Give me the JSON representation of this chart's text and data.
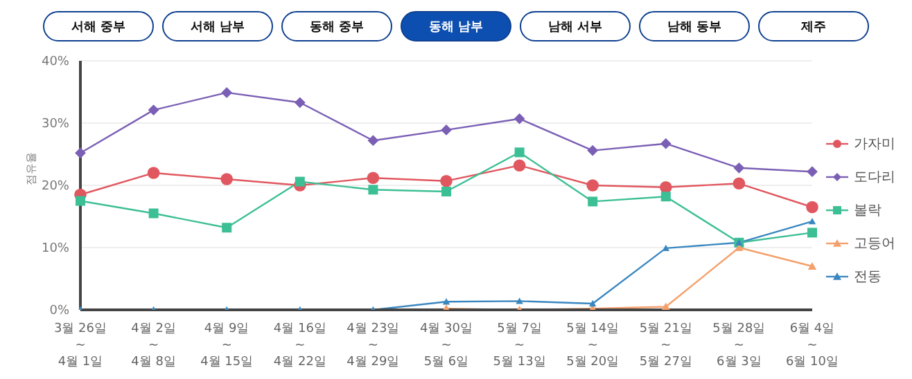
{
  "chart_data": {
    "type": "line",
    "title": "동해 남부",
    "annotations": [
      "서해 중부",
      "서해 남부",
      "동해 중부",
      "남해 서부",
      "남해 동부",
      "제주"
    ],
    "ylabel": "점유율",
    "categories": [
      "3월 26일\n~\n4월 1일",
      "4월 2일\n~\n4월 8일",
      "4월 9일\n~\n4월 15일",
      "4월 16일\n~\n4월 22일",
      "4월 23일\n~\n4월 29일",
      "4월 30일\n~\n5월 6일",
      "5월 7일\n~\n5월 13일",
      "5월 14일\n~\n5월 20일",
      "5월 21일\n~\n5월 27일",
      "5월 28일\n~\n6월 3일",
      "6월 4일\n~\n6월 10일"
    ],
    "series": [
      {
        "name": "가자미",
        "color": "#e0575f",
        "marker": "circle",
        "values": [
          18.5,
          22.0,
          21.0,
          20.0,
          21.2,
          20.7,
          23.2,
          20.0,
          19.7,
          20.3,
          16.5
        ]
      },
      {
        "name": "도다리",
        "color": "#7b5fb5",
        "marker": "diamond",
        "values": [
          25.2,
          32.1,
          34.9,
          33.3,
          27.2,
          28.9,
          30.7,
          25.6,
          26.7,
          22.8,
          22.2
        ]
      },
      {
        "name": "볼락",
        "color": "#3dbf95",
        "marker": "square",
        "values": [
          17.5,
          15.5,
          13.2,
          20.6,
          19.3,
          19.0,
          25.3,
          17.4,
          18.2,
          10.8,
          12.4
        ]
      },
      {
        "name": "고등어",
        "color": "#f4a06b",
        "marker": "triangle",
        "values": [
          null,
          null,
          null,
          null,
          null,
          0.2,
          0,
          0.2,
          0.5,
          10.0,
          7.0
        ]
      },
      {
        "name": "전동",
        "color": "#3a87c0",
        "marker": "triangle",
        "values": [
          0,
          0,
          0,
          0,
          0,
          1.3,
          1.4,
          1.0,
          9.9,
          10.8,
          14.2
        ]
      }
    ],
    "ylim": [
      0,
      40
    ],
    "yticks": [
      {
        "value": 0,
        "label": "0%"
      },
      {
        "value": 10,
        "label": "10%"
      },
      {
        "value": 20,
        "label": "20%"
      },
      {
        "value": 30,
        "label": "30%"
      },
      {
        "value": 40,
        "label": "40%"
      }
    ],
    "grid": "y",
    "legend": "right",
    "line_style": "solid"
  }
}
